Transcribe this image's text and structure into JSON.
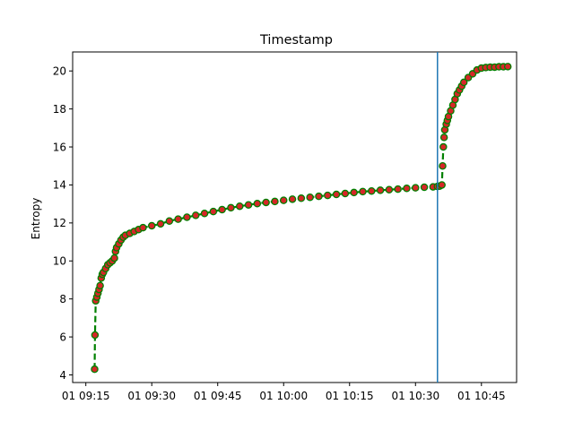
{
  "chart_data": {
    "type": "line",
    "title": "Timestamp",
    "xlabel": "",
    "ylabel": "Entropy",
    "x_axis": {
      "type": "time",
      "range": [
        "01 09:12",
        "01 10:53"
      ],
      "ticks": [
        "01 09:15",
        "01 09:30",
        "01 09:45",
        "01 10:00",
        "01 10:15",
        "01 10:30",
        "01 10:45"
      ]
    },
    "y_axis": {
      "range": [
        3.6,
        21.0
      ],
      "ticks": [
        4,
        6,
        8,
        10,
        12,
        14,
        16,
        18,
        20
      ]
    },
    "grid": false,
    "legend": "none",
    "colors": {
      "line": "#008000",
      "marker_face": "#d62728",
      "marker_edge": "#008000",
      "vline": "#1f77b4"
    },
    "series": [
      {
        "style": "dashed line with circle markers",
        "points": [
          [
            "09:17:00",
            4.3
          ],
          [
            "09:17:05",
            6.1
          ],
          [
            "09:17:15",
            7.9
          ],
          [
            "09:17:30",
            8.1
          ],
          [
            "09:17:45",
            8.3
          ],
          [
            "09:18:00",
            8.5
          ],
          [
            "09:18:15",
            8.7
          ],
          [
            "09:18:30",
            9.1
          ],
          [
            "09:18:45",
            9.3
          ],
          [
            "09:19:00",
            9.4
          ],
          [
            "09:19:30",
            9.6
          ],
          [
            "09:20:00",
            9.8
          ],
          [
            "09:20:30",
            9.9
          ],
          [
            "09:21:00",
            10.0
          ],
          [
            "09:21:30",
            10.15
          ],
          [
            "09:21:45",
            10.5
          ],
          [
            "09:22:00",
            10.7
          ],
          [
            "09:22:30",
            10.9
          ],
          [
            "09:23:00",
            11.1
          ],
          [
            "09:23:30",
            11.25
          ],
          [
            "09:24:00",
            11.35
          ],
          [
            "09:25:00",
            11.45
          ],
          [
            "09:26:00",
            11.55
          ],
          [
            "09:27:00",
            11.65
          ],
          [
            "09:28:00",
            11.75
          ],
          [
            "09:30:00",
            11.85
          ],
          [
            "09:32:00",
            11.95
          ],
          [
            "09:34:00",
            12.1
          ],
          [
            "09:36:00",
            12.2
          ],
          [
            "09:38:00",
            12.3
          ],
          [
            "09:40:00",
            12.4
          ],
          [
            "09:42:00",
            12.5
          ],
          [
            "09:44:00",
            12.6
          ],
          [
            "09:46:00",
            12.7
          ],
          [
            "09:48:00",
            12.8
          ],
          [
            "09:50:00",
            12.88
          ],
          [
            "09:52:00",
            12.95
          ],
          [
            "09:54:00",
            13.02
          ],
          [
            "09:56:00",
            13.08
          ],
          [
            "09:58:00",
            13.13
          ],
          [
            "10:00:00",
            13.19
          ],
          [
            "10:02:00",
            13.25
          ],
          [
            "10:04:00",
            13.3
          ],
          [
            "10:06:00",
            13.35
          ],
          [
            "10:08:00",
            13.4
          ],
          [
            "10:10:00",
            13.45
          ],
          [
            "10:12:00",
            13.5
          ],
          [
            "10:14:00",
            13.55
          ],
          [
            "10:16:00",
            13.6
          ],
          [
            "10:18:00",
            13.65
          ],
          [
            "10:20:00",
            13.68
          ],
          [
            "10:22:00",
            13.72
          ],
          [
            "10:24:00",
            13.75
          ],
          [
            "10:26:00",
            13.78
          ],
          [
            "10:28:00",
            13.82
          ],
          [
            "10:30:00",
            13.85
          ],
          [
            "10:32:00",
            13.88
          ],
          [
            "10:34:00",
            13.9
          ],
          [
            "10:35:00",
            13.92
          ],
          [
            "10:35:30",
            13.94
          ],
          [
            "10:36:00",
            14.0
          ],
          [
            "10:36:10",
            15.0
          ],
          [
            "10:36:20",
            16.0
          ],
          [
            "10:36:30",
            16.5
          ],
          [
            "10:36:40",
            16.9
          ],
          [
            "10:37:00",
            17.2
          ],
          [
            "10:37:15",
            17.4
          ],
          [
            "10:37:30",
            17.6
          ],
          [
            "10:38:00",
            17.9
          ],
          [
            "10:38:30",
            18.2
          ],
          [
            "10:39:00",
            18.5
          ],
          [
            "10:39:30",
            18.8
          ],
          [
            "10:40:00",
            19.0
          ],
          [
            "10:40:30",
            19.2
          ],
          [
            "10:41:00",
            19.4
          ],
          [
            "10:42:00",
            19.65
          ],
          [
            "10:43:00",
            19.85
          ],
          [
            "10:44:00",
            20.05
          ],
          [
            "10:45:00",
            20.15
          ],
          [
            "10:46:00",
            20.18
          ],
          [
            "10:47:00",
            20.2
          ],
          [
            "10:48:00",
            20.2
          ],
          [
            "10:49:00",
            20.22
          ],
          [
            "10:50:00",
            20.22
          ],
          [
            "10:51:00",
            20.23
          ]
        ]
      }
    ],
    "vertical_line": {
      "x": "10:35:00"
    }
  }
}
